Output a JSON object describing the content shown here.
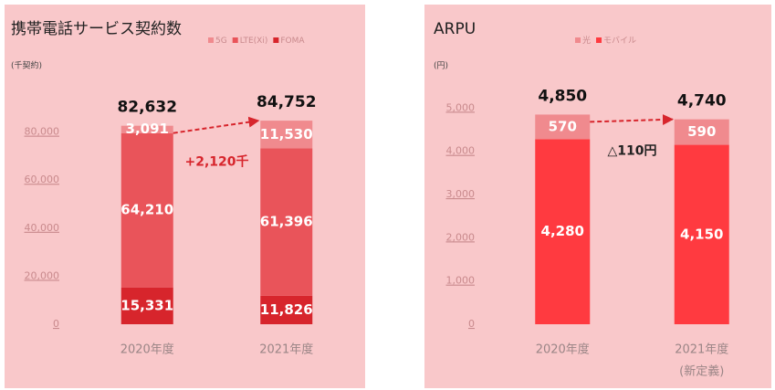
{
  "chart_data": [
    {
      "type": "stacked-bar",
      "title": "携帯電話サービス契約数",
      "unit_label": "(千契約)",
      "categories": [
        "2020年度",
        "2021年度"
      ],
      "series": [
        {
          "name": "FOMA",
          "color": "#d7252c",
          "values": [
            15331,
            11826
          ],
          "value_labels": [
            "15,331",
            "11,826"
          ]
        },
        {
          "name": "LTE(Xi)",
          "color": "#e9545a",
          "values": [
            64210,
            61396
          ],
          "value_labels": [
            "64,210",
            "61,396"
          ]
        },
        {
          "name": "5G",
          "color": "#f08a8e",
          "values": [
            3091,
            11530
          ],
          "value_labels": [
            "3,091",
            "11,530"
          ]
        }
      ],
      "totals": [
        82632,
        84752
      ],
      "total_labels": [
        "82,632",
        "84,752"
      ],
      "annotation": "+2,120千",
      "annotation_color": "#d7252c",
      "ylim": [
        0,
        100000
      ],
      "yticks": [
        0,
        {
          "value": 20000,
          "label": "20,000"
        },
        {
          "value": 40000,
          "label": "40,000"
        },
        {
          "value": 60000,
          "label": "60,000"
        },
        {
          "value": 80000,
          "label": "80,000"
        }
      ]
    },
    {
      "type": "stacked-bar",
      "title": "ARPU",
      "unit_label": "(円)",
      "categories": [
        "2020年度",
        "2021年度"
      ],
      "category_notes": [
        null,
        "(新定義)"
      ],
      "series": [
        {
          "name": "モバイル",
          "color": "#ff3a40",
          "values": [
            4280,
            4150
          ],
          "value_labels": [
            "4,280",
            "4,150"
          ]
        },
        {
          "name": "光",
          "color": "#f08a8e",
          "values": [
            570,
            590
          ]
        }
      ],
      "totals": [
        4850,
        4740
      ],
      "total_labels": [
        "4,850",
        "4,740"
      ],
      "annotation": "△110円",
      "annotation_color": "#222222",
      "ylim": [
        0,
        6000
      ],
      "yticks": [
        0,
        {
          "value": 1000,
          "label": "1,000"
        },
        {
          "value": 2000,
          "label": "2,000"
        },
        {
          "value": 3000,
          "label": "3,000"
        },
        {
          "value": 4000,
          "label": "4,000"
        },
        {
          "value": 5000,
          "label": "5,000"
        }
      ]
    }
  ]
}
